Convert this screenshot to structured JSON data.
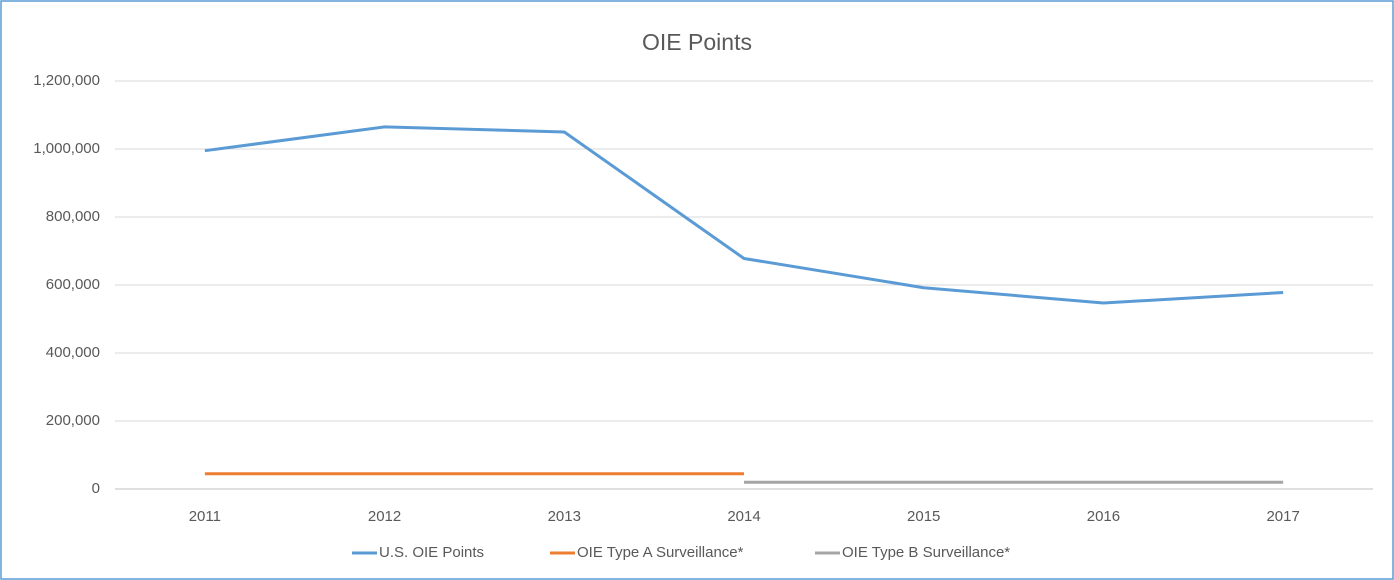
{
  "chart_data": {
    "type": "line",
    "title": "OIE Points",
    "categories": [
      "2011",
      "2012",
      "2013",
      "2014",
      "2015",
      "2016",
      "2017"
    ],
    "series": [
      {
        "name": "U.S. OIE Points",
        "color": "#5b9bd5",
        "values": [
          995000,
          1065000,
          1050000,
          678000,
          592000,
          547000,
          578000
        ]
      },
      {
        "name": "OIE Type A Surveillance*",
        "color": "#ed7d31",
        "values": [
          45000,
          45000,
          45000,
          45000,
          null,
          null,
          null
        ]
      },
      {
        "name": "OIE Type B Surveillance*",
        "color": "#a5a5a5",
        "values": [
          null,
          null,
          null,
          20000,
          20000,
          20000,
          20000
        ]
      }
    ],
    "ylim": [
      0,
      1200000
    ],
    "yticks": [
      0,
      {
        "value": 200000,
        "label": "200,000"
      },
      {
        "value": 400000,
        "label": "400,000"
      },
      {
        "value": 600000,
        "label": "600,000"
      },
      {
        "value": 800000,
        "label": "800,000"
      },
      {
        "value": 1000000,
        "label": "1,000,000"
      },
      {
        "value": 1200000,
        "label": "1,200,000"
      }
    ],
    "grid": true,
    "legend": "bottom"
  }
}
